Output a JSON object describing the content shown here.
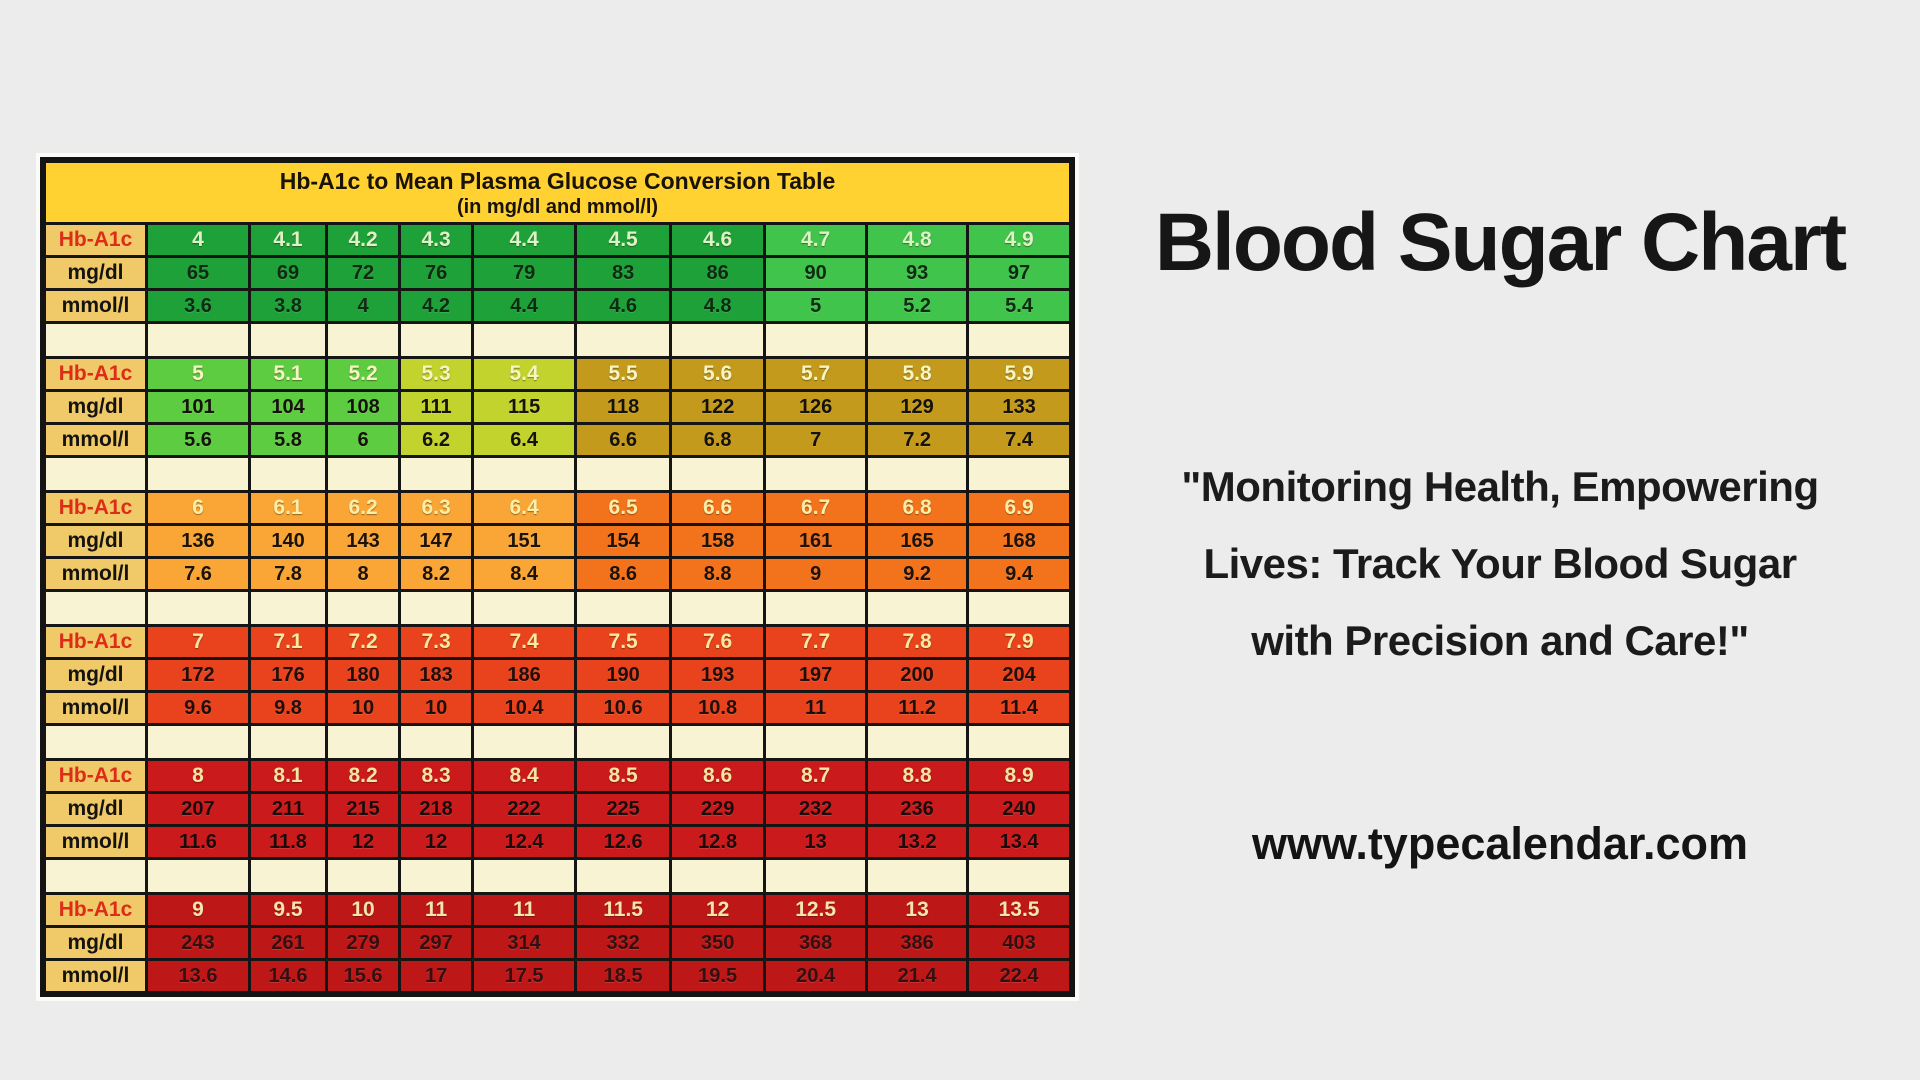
{
  "page": {
    "background": "#ececec"
  },
  "table": {
    "title_line1": "Hb-A1c to Mean Plasma Glucose Conversion Table",
    "title_line2": "(in mg/dl and mmol/l)",
    "row_labels": [
      "Hb-A1c",
      "mg/dl",
      "mmol/l"
    ],
    "colors": {
      "header_bg": "#ffd232",
      "label_bg": "#f0ca68",
      "label_hba1c_text": "#dd2c17",
      "label_text": "#151310",
      "spacer_bg": "#f8f4d3",
      "grid_border": "#151515"
    },
    "block_styles": [
      {
        "cells": [
          "#1fa139",
          "#1fa139",
          "#1fa139",
          "#1fa139",
          "#1fa139",
          "#1fa139",
          "#1fa139",
          "#41c44b",
          "#41c44b",
          "#41c44b"
        ],
        "hba1c_text": "#dcf3c8",
        "num_text": "#0f2a12"
      },
      {
        "cells": [
          "#5ecc41",
          "#5ecc41",
          "#5ecc41",
          "#c3d32d",
          "#c3d32d",
          "#c49a1d",
          "#c49a1d",
          "#c49a1d",
          "#c49a1d",
          "#c49a1d"
        ],
        "hba1c_text": "#f5f6c2",
        "num_text": "#14120a"
      },
      {
        "cells": [
          "#f9a636",
          "#f9a636",
          "#f9a636",
          "#f9a636",
          "#f9a636",
          "#f3731d",
          "#f3731d",
          "#f3731d",
          "#f3731d",
          "#f3731d"
        ],
        "hba1c_text": "#fbefa8",
        "num_text": "#1d1208"
      },
      {
        "cells": [
          "#e8431d",
          "#e8431d",
          "#e8431d",
          "#e8431d",
          "#e8431d",
          "#e8431d",
          "#e8431d",
          "#e8431d",
          "#e8431d",
          "#e8431d"
        ],
        "hba1c_text": "#fce9a0",
        "num_text": "#200e08"
      },
      {
        "cells": [
          "#ca1a1b",
          "#ca1a1b",
          "#ca1a1b",
          "#ca1a1b",
          "#ca1a1b",
          "#ca1a1b",
          "#ca1a1b",
          "#ca1a1b",
          "#ca1a1b",
          "#ca1a1b"
        ],
        "hba1c_text": "#f8e2a4",
        "num_text": "#1c0a0a"
      },
      {
        "cells": [
          "#be1717",
          "#be1717",
          "#be1717",
          "#be1717",
          "#be1717",
          "#be1717",
          "#be1717",
          "#be1717",
          "#be1717",
          "#be1717"
        ],
        "hba1c_text": "#f6e3b0",
        "num_text": "#330f0f"
      }
    ]
  },
  "chart_data": {
    "type": "table",
    "title": "Hb-A1c to Mean Plasma Glucose Conversion Table",
    "subtitle": "(in mg/dl and mmol/l)",
    "row_labels": [
      "Hb-A1c",
      "mg/dl",
      "mmol/l"
    ],
    "blocks": [
      {
        "hba1c": [
          "4",
          "4.1",
          "4.2",
          "4.3",
          "4.4",
          "4.5",
          "4.6",
          "4.7",
          "4.8",
          "4.9"
        ],
        "mg_dl": [
          "65",
          "69",
          "72",
          "76",
          "79",
          "83",
          "86",
          "90",
          "93",
          "97"
        ],
        "mmol_l": [
          "3.6",
          "3.8",
          "4",
          "4.2",
          "4.4",
          "4.6",
          "4.8",
          "5",
          "5.2",
          "5.4"
        ]
      },
      {
        "hba1c": [
          "5",
          "5.1",
          "5.2",
          "5.3",
          "5.4",
          "5.5",
          "5.6",
          "5.7",
          "5.8",
          "5.9"
        ],
        "mg_dl": [
          "101",
          "104",
          "108",
          "111",
          "115",
          "118",
          "122",
          "126",
          "129",
          "133"
        ],
        "mmol_l": [
          "5.6",
          "5.8",
          "6",
          "6.2",
          "6.4",
          "6.6",
          "6.8",
          "7",
          "7.2",
          "7.4"
        ]
      },
      {
        "hba1c": [
          "6",
          "6.1",
          "6.2",
          "6.3",
          "6.4",
          "6.5",
          "6.6",
          "6.7",
          "6.8",
          "6.9"
        ],
        "mg_dl": [
          "136",
          "140",
          "143",
          "147",
          "151",
          "154",
          "158",
          "161",
          "165",
          "168"
        ],
        "mmol_l": [
          "7.6",
          "7.8",
          "8",
          "8.2",
          "8.4",
          "8.6",
          "8.8",
          "9",
          "9.2",
          "9.4"
        ]
      },
      {
        "hba1c": [
          "7",
          "7.1",
          "7.2",
          "7.3",
          "7.4",
          "7.5",
          "7.6",
          "7.7",
          "7.8",
          "7.9"
        ],
        "mg_dl": [
          "172",
          "176",
          "180",
          "183",
          "186",
          "190",
          "193",
          "197",
          "200",
          "204"
        ],
        "mmol_l": [
          "9.6",
          "9.8",
          "10",
          "10",
          "10.4",
          "10.6",
          "10.8",
          "11",
          "11.2",
          "11.4"
        ]
      },
      {
        "hba1c": [
          "8",
          "8.1",
          "8.2",
          "8.3",
          "8.4",
          "8.5",
          "8.6",
          "8.7",
          "8.8",
          "8.9"
        ],
        "mg_dl": [
          "207",
          "211",
          "215",
          "218",
          "222",
          "225",
          "229",
          "232",
          "236",
          "240"
        ],
        "mmol_l": [
          "11.6",
          "11.8",
          "12",
          "12",
          "12.4",
          "12.6",
          "12.8",
          "13",
          "13.2",
          "13.4"
        ]
      },
      {
        "hba1c": [
          "9",
          "9.5",
          "10",
          "11",
          "11",
          "11.5",
          "12",
          "12.5",
          "13",
          "13.5"
        ],
        "mg_dl": [
          "243",
          "261",
          "279",
          "297",
          "314",
          "332",
          "350",
          "368",
          "386",
          "403"
        ],
        "mmol_l": [
          "13.6",
          "14.6",
          "15.6",
          "17",
          "17.5",
          "18.5",
          "19.5",
          "20.4",
          "21.4",
          "22.4"
        ]
      }
    ]
  },
  "right": {
    "title": "Blood Sugar Chart",
    "quote_lines": [
      "\"Monitoring Health, Empowering",
      "Lives: Track Your Blood Sugar",
      "with Precision and Care!\""
    ],
    "website": "www.typecalendar.com"
  }
}
